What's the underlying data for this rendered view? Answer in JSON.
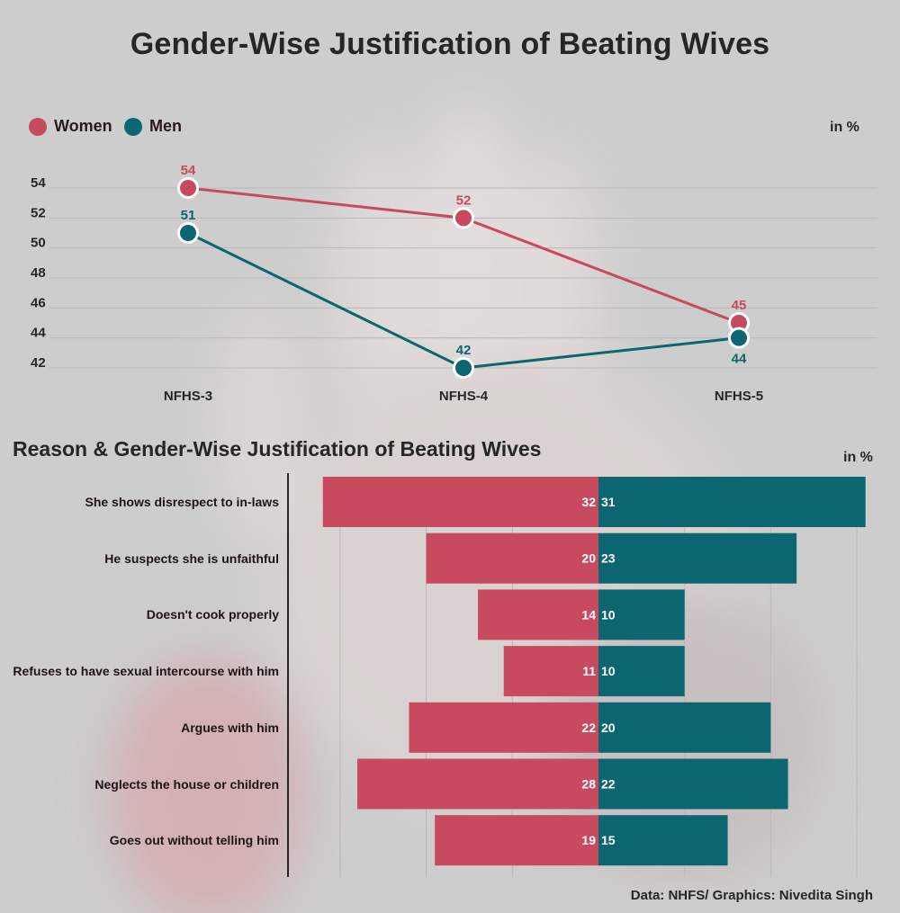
{
  "title": "Gender-Wise Justification of Beating Wives",
  "colors": {
    "women": "#c84a5f",
    "men": "#0b6672",
    "axis": "#262626"
  },
  "line_chart": {
    "unit": "in %",
    "legend": [
      {
        "label": "Women",
        "color": "#c84a5f"
      },
      {
        "label": "Men",
        "color": "#0b6672"
      }
    ]
  },
  "bar_chart": {
    "title": "Reason & Gender-Wise Justification of Beating Wives",
    "unit": "in %"
  },
  "source": "Data: NHFS/ Graphics: Nivedita Singh",
  "chart_data": [
    {
      "type": "line",
      "title": "Gender-Wise Justification of Beating Wives",
      "categories": [
        "NFHS-3",
        "NFHS-4",
        "NFHS-5"
      ],
      "series": [
        {
          "name": "Women",
          "values": [
            54,
            52,
            45
          ]
        },
        {
          "name": "Men",
          "values": [
            51,
            42,
            44
          ]
        }
      ],
      "yticks": [
        54,
        52,
        50,
        48,
        46,
        44,
        42
      ],
      "ylim": [
        41,
        55
      ],
      "ylabel": "in %",
      "grid": true,
      "legend": "top-left"
    },
    {
      "type": "bar",
      "orientation": "diverging-horizontal",
      "title": "Reason & Gender-Wise Justification of Beating Wives",
      "categories": [
        "She shows disrespect to in-laws",
        "He suspects she is unfaithful",
        "Doesn't cook properly",
        "Refuses to have sexual intercourse with him",
        "Argues with him",
        "Neglects the house or children",
        "Goes out without telling him"
      ],
      "series": [
        {
          "name": "Women",
          "values": [
            32,
            20,
            14,
            11,
            22,
            28,
            19
          ]
        },
        {
          "name": "Men",
          "values": [
            31,
            23,
            10,
            10,
            20,
            22,
            15
          ]
        }
      ],
      "unit": "in %",
      "grid": true
    }
  ]
}
